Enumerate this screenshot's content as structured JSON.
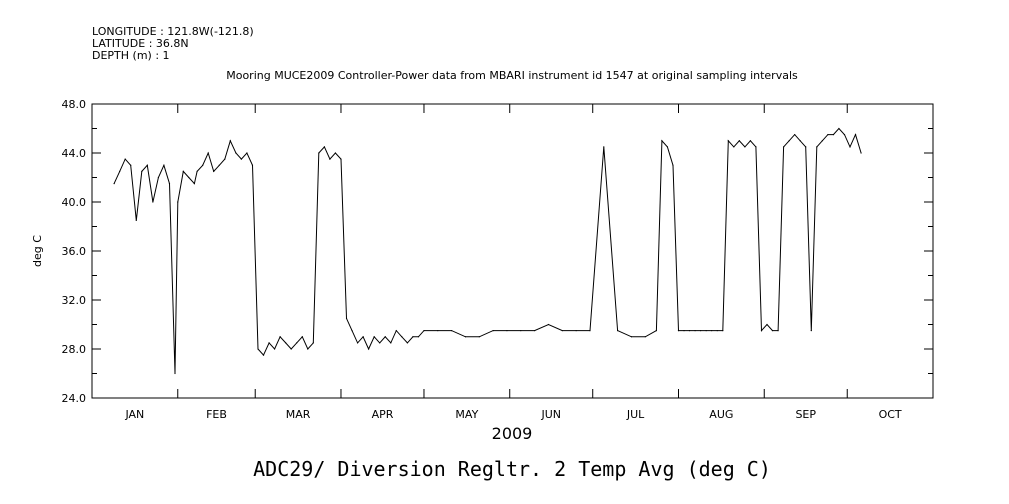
{
  "header": {
    "longitude": "LONGITUDE : 121.8W(-121.8)",
    "latitude": "LATITUDE : 36.8N",
    "depth": "DEPTH (m) : 1"
  },
  "chart_data": {
    "type": "line",
    "title": "Mooring MUCE2009 Controller-Power data from MBARI instrument id 1547 at original sampling intervals",
    "ylabel": "deg C",
    "xlabel": "2009",
    "footer": "ADC29/ Diversion Regltr. 2 Temp Avg (deg C)",
    "ylim": [
      24.0,
      48.0
    ],
    "yticks": [
      "24.0",
      "28.0",
      "32.0",
      "36.0",
      "40.0",
      "44.0",
      "48.0"
    ],
    "xlim": [
      0,
      304
    ],
    "month_starts": [
      0,
      31,
      59,
      90,
      120,
      151,
      181,
      212,
      243,
      273,
      304
    ],
    "months": [
      "JAN",
      "FEB",
      "MAR",
      "APR",
      "MAY",
      "JUN",
      "JUL",
      "AUG",
      "SEP",
      "OCT"
    ],
    "grid": false,
    "series": [
      {
        "x": [
          8,
          10,
          12,
          14,
          16,
          18,
          20,
          22,
          24,
          26,
          28,
          30,
          31,
          33,
          35,
          37,
          38,
          40,
          42,
          44,
          46,
          48,
          50,
          52,
          54,
          56,
          58,
          60,
          62,
          64,
          66,
          68,
          70,
          72,
          74,
          76,
          78,
          80,
          82,
          84,
          86,
          88,
          90,
          92,
          94,
          96,
          98,
          100,
          102,
          104,
          106,
          108,
          110,
          112,
          114,
          116,
          118,
          120,
          125,
          130,
          135,
          140,
          145,
          150,
          155,
          160,
          165,
          170,
          175,
          180,
          185,
          190,
          195,
          200,
          204,
          206,
          208,
          210,
          212,
          214,
          216,
          218,
          220,
          222,
          224,
          226,
          228,
          230,
          232,
          234,
          236,
          238,
          240,
          242,
          244,
          246,
          248,
          250,
          252,
          254,
          256,
          258,
          260,
          262,
          264,
          266,
          268,
          270,
          272,
          274,
          276,
          278
        ],
        "y": [
          41.5,
          42.5,
          43.5,
          43.0,
          38.5,
          42.5,
          43.0,
          40.0,
          42.0,
          43.0,
          41.5,
          26.0,
          40.0,
          42.5,
          42.0,
          41.5,
          42.5,
          43.0,
          44.0,
          42.5,
          43.0,
          43.5,
          45.0,
          44.0,
          43.5,
          44.0,
          43.0,
          28.0,
          27.5,
          28.5,
          28.0,
          29.0,
          28.5,
          28.0,
          28.5,
          29.0,
          28.0,
          28.5,
          44.0,
          44.5,
          43.5,
          44.0,
          43.5,
          30.5,
          29.5,
          28.5,
          29.0,
          28.0,
          29.0,
          28.5,
          29.0,
          28.5,
          29.5,
          29.0,
          28.5,
          29.0,
          29.0,
          29.5,
          29.5,
          29.5,
          29.0,
          29.0,
          29.5,
          29.5,
          29.5,
          29.5,
          30.0,
          29.5,
          29.5,
          29.5,
          44.5,
          29.5,
          29.0,
          29.0,
          29.5,
          45.0,
          44.5,
          43.0,
          29.5,
          29.5,
          29.5,
          29.5,
          29.5,
          29.5,
          29.5,
          29.5,
          29.5,
          45.0,
          44.5,
          45.0,
          44.5,
          45.0,
          44.5,
          29.5,
          30.0,
          29.5,
          29.5,
          44.5,
          45.0,
          45.5,
          45.0,
          44.5,
          29.5,
          44.5,
          45.0,
          45.5,
          45.5,
          46.0,
          45.5,
          44.5,
          45.5,
          44.0
        ]
      }
    ]
  }
}
